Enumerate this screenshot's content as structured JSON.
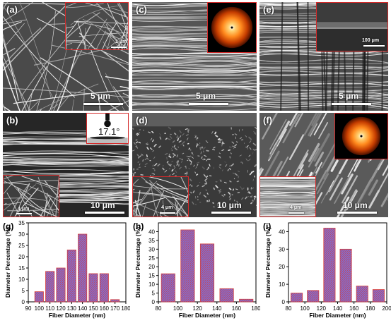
{
  "panels": {
    "a": {
      "label": "(a)",
      "scalebar": "5 μm",
      "inset_scalebar": "1 μm"
    },
    "b": {
      "label": "(b)",
      "scalebar": "10 μm",
      "inset_scalebar": "4 μm",
      "contact_angle": "17.1°"
    },
    "c": {
      "label": "(c)",
      "scalebar": "5 μm"
    },
    "d": {
      "label": "(d)",
      "scalebar": "10 μm",
      "inset_scalebar": "4 μm"
    },
    "e": {
      "label": "(e)",
      "scalebar": "5 μm",
      "inset_scalebar": "100 μm"
    },
    "f": {
      "label": "(f)",
      "scalebar": "10 μm",
      "inset_scalebar": "4 μm"
    }
  },
  "colors": {
    "inset_border": "#d42a2a",
    "bar_fill": "#7d6fd6",
    "bar_edge": "#d43f3f"
  },
  "chart_data": [
    {
      "panel": "(g)",
      "type": "bar",
      "x": [
        100,
        110,
        120,
        130,
        140,
        150,
        160,
        170
      ],
      "values": [
        4.5,
        13.5,
        15,
        23,
        30,
        12.5,
        12.5,
        1
      ],
      "bar_width": 8,
      "xlim": [
        90,
        180
      ],
      "ylim": [
        0,
        35
      ],
      "xticks": [
        90,
        100,
        110,
        120,
        130,
        140,
        150,
        160,
        170,
        180
      ],
      "yticks": [
        0,
        5,
        10,
        15,
        20,
        25,
        30,
        35
      ],
      "xlabel": "Fiber Diameter (nm)",
      "ylabel": "Diameter Percentage (%)"
    },
    {
      "panel": "(h)",
      "type": "bar",
      "x": [
        90,
        110,
        130,
        150,
        170
      ],
      "values": [
        16,
        41,
        33,
        7.5,
        1.5
      ],
      "bar_width": 14,
      "xlim": [
        80,
        180
      ],
      "ylim": [
        0,
        45
      ],
      "xticks": [
        80,
        100,
        120,
        140,
        160,
        180
      ],
      "yticks": [
        0,
        5,
        10,
        15,
        20,
        25,
        30,
        35,
        40
      ],
      "xlabel": "Fiber Diameter (nm)",
      "ylabel": "Diameter Percentage (%)"
    },
    {
      "panel": "(i)",
      "type": "bar",
      "x": [
        90,
        110,
        130,
        150,
        170,
        190
      ],
      "values": [
        5,
        6.5,
        42,
        30,
        9,
        7
      ],
      "bar_width": 14,
      "xlim": [
        80,
        200
      ],
      "ylim": [
        0,
        45
      ],
      "xticks": [
        80,
        100,
        120,
        140,
        160,
        180,
        200
      ],
      "yticks": [
        0,
        10,
        20,
        30,
        40
      ],
      "xlabel": "Fiber Diameter (nm)",
      "ylabel": "Diameter Percentage (%)"
    }
  ]
}
